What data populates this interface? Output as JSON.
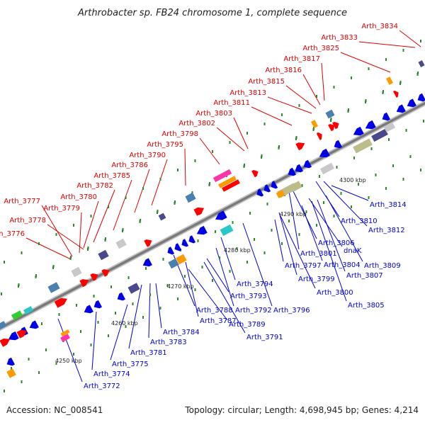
{
  "title": "Arthrobacter sp. FB24 chromosome 1, complete sequence",
  "footer": {
    "accession": "Accession: NC_008541",
    "summary": "Topology: circular; Length: 4,698,945 bp; Genes: 4,214"
  },
  "colors": {
    "backbone": "#8a8a8a",
    "label_upper": "#e00000",
    "label_lower": "#0000cc",
    "tick": "#2a8a2a",
    "gene_blue": "#0000e6",
    "gene_red": "#ff0000",
    "gene_olive": "#bdbd8a",
    "gene_cyan": "#29c7c7",
    "gene_gray": "#c8c8c8",
    "gene_orange": "#ff9900",
    "gene_magenta": "#ff33aa",
    "gene_navy": "#4a4a8a",
    "gene_steel": "#4a7fb0",
    "gene_green": "#33cc33"
  },
  "kbp_markers": [
    "4250 kbp",
    "4260 kbp",
    "4270 kbp",
    "4280 kbp",
    "4290 kbp",
    "4300 kbp"
  ],
  "upper_labels": [
    "Arth_3834",
    "Arth_3833",
    "Arth_3825",
    "Arth_3817",
    "Arth_3816",
    "Arth_3815",
    "Arth_3813",
    "Arth_3811",
    "Arth_3803",
    "Arth_3802",
    "Arth_3798",
    "Arth_3795",
    "Arth_3790",
    "Arth_3786",
    "Arth_3785",
    "Arth_3782",
    "Arth_3780",
    "Arth_3779",
    "Arth_3777",
    "Arth_3778",
    "Arth_3776"
  ],
  "lower_labels": [
    "Arth_3814",
    "Arth_3812",
    "Arth_3810",
    "Arth_3806",
    "dnaK",
    "Arth_3809",
    "Arth_3801",
    "Arth_3804",
    "Arth_3807",
    "Arth_3797",
    "Arth_3799",
    "Arth_3800",
    "Arth_3805",
    "Arth_3794",
    "Arth_3793",
    "Arth_3792",
    "Arth_3796",
    "Arth_3788",
    "Arth_3787",
    "Arth_3789",
    "Arth_3791",
    "Arth_3784",
    "Arth_3783",
    "Arth_3781",
    "Arth_3775",
    "Arth_3774",
    "Arth_3772"
  ]
}
